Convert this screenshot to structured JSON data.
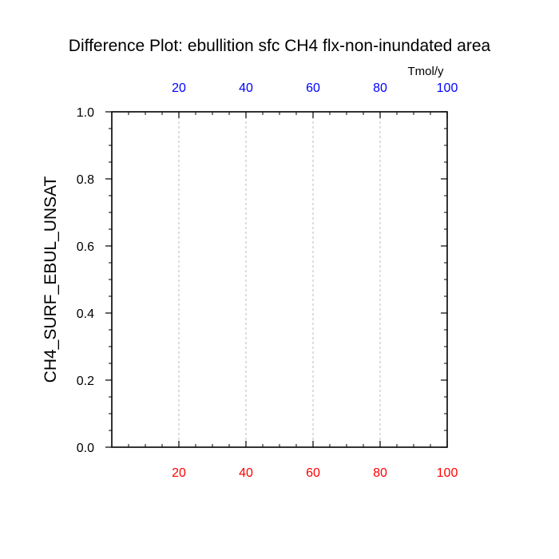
{
  "chart_data": {
    "type": "line",
    "title": "Difference Plot: ebullition sfc CH4 flx-non-inundated area",
    "ylabel": "CH4_SURF_EBUL_UNSAT",
    "top_axis_unit": "Tmol/y",
    "xlim": [
      0,
      100
    ],
    "ylim": [
      0.0,
      1.0
    ],
    "x_ticks": [
      20,
      40,
      60,
      80,
      100
    ],
    "x_tick_labels": [
      "20",
      "40",
      "60",
      "80",
      "100"
    ],
    "y_ticks": [
      0.0,
      0.2,
      0.4,
      0.6,
      0.8,
      1.0
    ],
    "y_tick_labels": [
      "0.0",
      "0.2",
      "0.4",
      "0.6",
      "0.8",
      "1.0"
    ],
    "grid": "vertical dashed at major x ticks",
    "series": [],
    "bottom_axis_color": "#ff0000",
    "top_axis_color": "#0000ff",
    "frame_color": "#000000",
    "grid_color": "#bbbbbb"
  }
}
